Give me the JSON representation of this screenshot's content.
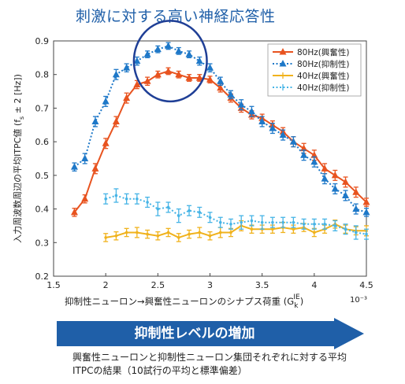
{
  "title": "刺激に対する高い神経応答性",
  "arrow_label": "抑制性レベルの増加",
  "caption": "興奮性ニューロンと抑制性ニューロン集団それぞれに対する平均ITPCの結果（10試行の平均と標準偏差）",
  "chart_data": {
    "type": "line",
    "xlabel": "抑制性ニューロン→興奮性ニューロンのシナプス荷重 (G",
    "xlabel_sub": "k",
    "xlabel_sup": "IE",
    "xlabel_tail": ")",
    "x_exponent": "10⁻³",
    "ylabel": "入力周波数周辺の平均ITPC値 (f",
    "ylabel_sub": "s",
    "ylabel_tail": " ± 2 [Hz])",
    "xlim": [
      1.5,
      4.5
    ],
    "ylim": [
      0.2,
      0.9
    ],
    "xticks": [
      "1.5",
      "2",
      "2.5",
      "3",
      "3.5",
      "4",
      "4.5"
    ],
    "yticks": [
      "0.2",
      "0.3",
      "0.4",
      "0.5",
      "0.6",
      "0.7",
      "0.8",
      "0.9"
    ],
    "legend_position": "top-right",
    "x": [
      1.7,
      1.8,
      1.9,
      2.0,
      2.1,
      2.2,
      2.3,
      2.4,
      2.5,
      2.6,
      2.7,
      2.8,
      2.9,
      3.0,
      3.1,
      3.2,
      3.3,
      3.4,
      3.5,
      3.6,
      3.7,
      3.8,
      3.9,
      4.0,
      4.1,
      4.2,
      4.3,
      4.4,
      4.5
    ],
    "series": [
      {
        "name": "80Hz(興奮性)",
        "color": "#e8531f",
        "style": "solid",
        "marker": "triangle",
        "values": [
          0.39,
          0.43,
          0.52,
          0.595,
          0.66,
          0.73,
          0.77,
          0.78,
          0.8,
          0.81,
          0.8,
          0.79,
          0.79,
          0.785,
          0.76,
          0.73,
          0.7,
          0.68,
          0.67,
          0.65,
          0.63,
          0.6,
          0.58,
          0.56,
          0.52,
          0.5,
          0.48,
          0.45,
          0.42
        ],
        "errors": [
          0.012,
          0.012,
          0.015,
          0.015,
          0.015,
          0.015,
          0.012,
          0.012,
          0.01,
          0.01,
          0.01,
          0.01,
          0.01,
          0.01,
          0.012,
          0.012,
          0.012,
          0.012,
          0.012,
          0.012,
          0.012,
          0.015,
          0.015,
          0.015,
          0.015,
          0.015,
          0.015,
          0.015,
          0.012
        ]
      },
      {
        "name": "80Hz(抑制性)",
        "color": "#1e78c8",
        "style": "dotted",
        "marker": "triangle",
        "values": [
          0.525,
          0.55,
          0.66,
          0.72,
          0.8,
          0.82,
          0.84,
          0.86,
          0.875,
          0.885,
          0.87,
          0.86,
          0.84,
          0.82,
          0.78,
          0.74,
          0.71,
          0.69,
          0.66,
          0.64,
          0.62,
          0.6,
          0.56,
          0.54,
          0.49,
          0.46,
          0.44,
          0.4,
          0.39
        ],
        "errors": [
          0.012,
          0.015,
          0.015,
          0.015,
          0.015,
          0.012,
          0.012,
          0.01,
          0.01,
          0.01,
          0.01,
          0.01,
          0.012,
          0.012,
          0.012,
          0.012,
          0.015,
          0.015,
          0.015,
          0.015,
          0.015,
          0.015,
          0.015,
          0.015,
          0.015,
          0.015,
          0.015,
          0.015,
          0.012
        ]
      },
      {
        "name": "40Hz(興奮性)",
        "color": "#f0b21c",
        "style": "solid",
        "marker": "x",
        "values": [
          null,
          null,
          null,
          0.315,
          0.32,
          0.33,
          0.33,
          0.325,
          0.32,
          0.33,
          0.315,
          0.325,
          0.33,
          0.32,
          0.33,
          0.33,
          0.35,
          0.34,
          0.34,
          0.34,
          0.345,
          0.34,
          0.345,
          0.33,
          0.34,
          0.355,
          0.34,
          0.335,
          0.335
        ],
        "errors": [
          null,
          null,
          null,
          0.012,
          0.012,
          0.012,
          0.015,
          0.012,
          0.012,
          0.012,
          0.012,
          0.012,
          0.015,
          0.012,
          0.015,
          0.012,
          0.015,
          0.012,
          0.012,
          0.012,
          0.015,
          0.012,
          0.012,
          0.012,
          0.012,
          0.012,
          0.012,
          0.012,
          0.015
        ]
      },
      {
        "name": "40Hz(抑制性)",
        "color": "#46b4e6",
        "style": "dotted",
        "marker": "x",
        "values": [
          null,
          null,
          null,
          0.43,
          0.44,
          0.43,
          0.43,
          0.42,
          0.4,
          0.405,
          0.38,
          0.395,
          0.39,
          0.375,
          0.36,
          0.355,
          0.36,
          0.365,
          0.36,
          0.36,
          0.36,
          0.36,
          0.355,
          0.355,
          0.355,
          0.35,
          0.34,
          0.33,
          0.325
        ],
        "errors": [
          null,
          null,
          null,
          0.015,
          0.02,
          0.015,
          0.015,
          0.015,
          0.02,
          0.015,
          0.02,
          0.015,
          0.015,
          0.015,
          0.015,
          0.015,
          0.02,
          0.015,
          0.02,
          0.015,
          0.015,
          0.015,
          0.015,
          0.015,
          0.015,
          0.015,
          0.015,
          0.02,
          0.015
        ]
      }
    ],
    "highlight": {
      "x_center": 2.62,
      "y_center": 0.84,
      "rx": 0.35,
      "ry": 0.12,
      "color": "#1f3f96"
    }
  }
}
